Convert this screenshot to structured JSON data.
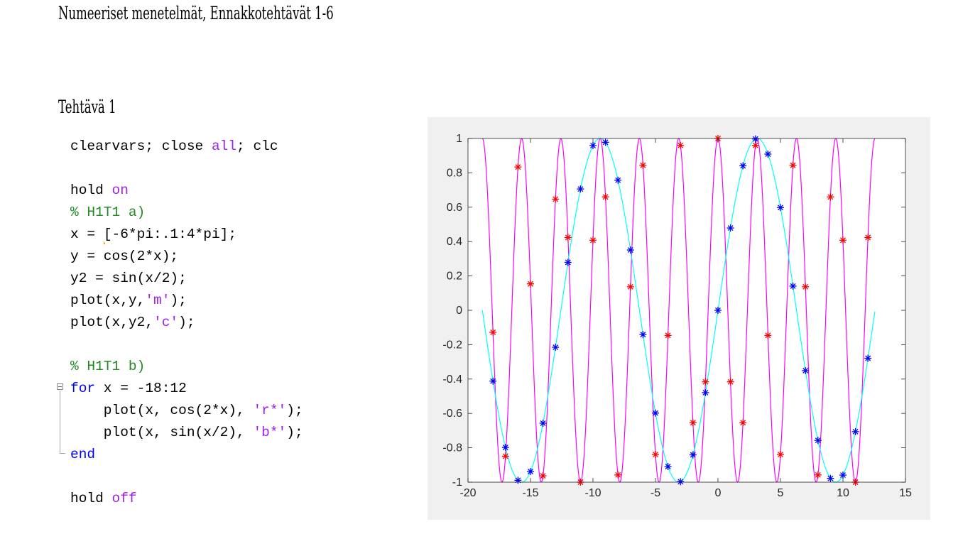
{
  "document": {
    "title": "Numeeriset menetelmät, Ennakkotehtävät 1-6",
    "section_heading": "Tehtävä 1"
  },
  "code": {
    "lines": [
      {
        "segments": [
          {
            "text": "clearvars; close ",
            "cls": ""
          },
          {
            "text": "all",
            "cls": "str"
          },
          {
            "text": "; clc",
            "cls": ""
          }
        ]
      },
      {
        "segments": []
      },
      {
        "segments": [
          {
            "text": "hold ",
            "cls": ""
          },
          {
            "text": "on",
            "cls": "str"
          }
        ]
      },
      {
        "segments": [
          {
            "text": "% H1T1 a)",
            "cls": "cmt"
          }
        ]
      },
      {
        "segments": [
          {
            "text": "x = ",
            "cls": ""
          },
          {
            "text": "[",
            "cls": "squiggle"
          },
          {
            "text": "-6*pi:.1:4*pi];",
            "cls": ""
          }
        ]
      },
      {
        "segments": [
          {
            "text": "y = cos(2*x);",
            "cls": ""
          }
        ]
      },
      {
        "segments": [
          {
            "text": "y2 = sin(x/2);",
            "cls": ""
          }
        ]
      },
      {
        "segments": [
          {
            "text": "plot(x,y,",
            "cls": ""
          },
          {
            "text": "'m'",
            "cls": "str"
          },
          {
            "text": ");",
            "cls": ""
          }
        ]
      },
      {
        "segments": [
          {
            "text": "plot(x,y2,",
            "cls": ""
          },
          {
            "text": "'c'",
            "cls": "str"
          },
          {
            "text": ");",
            "cls": ""
          }
        ]
      },
      {
        "segments": []
      },
      {
        "segments": [
          {
            "text": "% H1T1 b)",
            "cls": "cmt"
          }
        ]
      },
      {
        "segments": [
          {
            "text": "for",
            "cls": "kw"
          },
          {
            "text": " x = -18:12",
            "cls": ""
          }
        ]
      },
      {
        "segments": [
          {
            "text": "    plot(x, cos(2*x), ",
            "cls": ""
          },
          {
            "text": "'r*'",
            "cls": "str"
          },
          {
            "text": ");",
            "cls": ""
          }
        ]
      },
      {
        "segments": [
          {
            "text": "    plot(x, sin(x/2), ",
            "cls": ""
          },
          {
            "text": "'b*'",
            "cls": "str"
          },
          {
            "text": ");",
            "cls": ""
          }
        ]
      },
      {
        "segments": [
          {
            "text": "end",
            "cls": "kw"
          }
        ]
      },
      {
        "segments": []
      },
      {
        "segments": [
          {
            "text": "hold ",
            "cls": ""
          },
          {
            "text": "off",
            "cls": "str"
          }
        ]
      }
    ]
  },
  "colors": {
    "keyword": "#0000ff",
    "string": "#a020f0",
    "comment": "#228b22",
    "figure_background": "#f0f0f0",
    "cos_curve": "#ff00ff",
    "sin_curve": "#00ffff",
    "cos_markers": "#ff0000",
    "sin_markers": "#0000ff"
  },
  "chart_data": {
    "type": "line",
    "title": "",
    "xlabel": "",
    "ylabel": "",
    "xlim": [
      -20,
      15
    ],
    "ylim": [
      -1,
      1
    ],
    "xticks": [
      -20,
      -15,
      -10,
      -5,
      0,
      5,
      10,
      15
    ],
    "xtick_labels": [
      "-20",
      "-15",
      "-10",
      "-5",
      "0",
      "5",
      "10",
      "15"
    ],
    "yticks": [
      -1,
      -0.8,
      -0.6,
      -0.4,
      -0.2,
      0,
      0.2,
      0.4,
      0.6,
      0.8,
      1
    ],
    "ytick_labels": [
      "-1",
      "-0.8",
      "-0.6",
      "-0.4",
      "-0.2",
      "0",
      "0.2",
      "0.4",
      "0.6",
      "0.8",
      "1"
    ],
    "grid": false,
    "series": [
      {
        "type": "line",
        "color": "#ff00ff",
        "function": "cos(2*x)",
        "x_range": [
          -18.85,
          12.57
        ],
        "x_step": 0.1
      },
      {
        "type": "line",
        "color": "#00ffff",
        "function": "sin(x/2)",
        "x_range": [
          -18.85,
          12.57
        ],
        "x_step": 0.1
      },
      {
        "type": "scatter",
        "marker": "asterisk",
        "color": "#ff0000",
        "x": [
          -18,
          -17,
          -16,
          -15,
          -14,
          -13,
          -12,
          -11,
          -10,
          -9,
          -8,
          -7,
          -6,
          -5,
          -4,
          -3,
          -2,
          -1,
          0,
          1,
          2,
          3,
          4,
          5,
          6,
          7,
          8,
          9,
          10,
          11,
          12
        ],
        "y": [
          -0.128,
          -0.849,
          0.834,
          0.154,
          -0.963,
          0.647,
          0.424,
          -1.0,
          0.408,
          0.66,
          -0.958,
          0.137,
          0.844,
          -0.839,
          -0.146,
          0.96,
          -0.654,
          -0.416,
          1.0,
          -0.416,
          -0.654,
          0.96,
          -0.146,
          -0.839,
          0.844,
          0.137,
          -0.958,
          0.66,
          0.408,
          -1.0,
          0.424
        ]
      },
      {
        "type": "scatter",
        "marker": "asterisk",
        "color": "#0000ff",
        "x": [
          -18,
          -17,
          -16,
          -15,
          -14,
          -13,
          -12,
          -11,
          -10,
          -9,
          -8,
          -7,
          -6,
          -5,
          -4,
          -3,
          -2,
          -1,
          0,
          1,
          2,
          3,
          4,
          5,
          6,
          7,
          8,
          9,
          10,
          11,
          12
        ],
        "y": [
          -0.412,
          -0.798,
          -0.989,
          -0.938,
          -0.657,
          -0.215,
          0.279,
          0.706,
          0.959,
          0.978,
          0.757,
          0.351,
          -0.141,
          -0.598,
          -0.909,
          -0.997,
          -0.841,
          -0.479,
          0.0,
          0.479,
          0.841,
          0.997,
          0.909,
          0.598,
          0.141,
          -0.351,
          -0.757,
          -0.978,
          -0.959,
          -0.706,
          -0.279
        ]
      }
    ]
  }
}
